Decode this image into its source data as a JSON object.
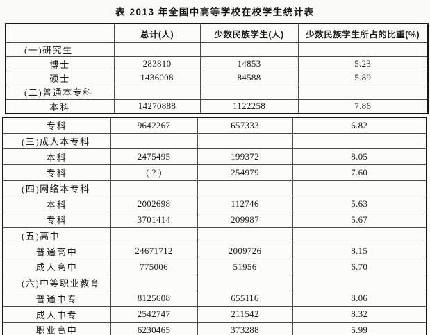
{
  "title": "表 2013 年全国中高等学校在校学生统计表",
  "table": {
    "headers": [
      "",
      "总计(人)",
      "少数民族学生(人)",
      "少数民族学生所占的比重(%)"
    ],
    "sections": [
      {
        "rows": [
          {
            "kind": "category",
            "label": "(一)研究生"
          },
          {
            "kind": "data",
            "label": "博士",
            "total": "283810",
            "minority": "14853",
            "pct": "5.23"
          },
          {
            "kind": "data",
            "label": "硕士",
            "total": "1436008",
            "minority": "84588",
            "pct": "5.89"
          },
          {
            "kind": "category",
            "label": "(二)普通本专科"
          },
          {
            "kind": "data",
            "label": "本科",
            "total": "14270888",
            "minority": "1122258",
            "pct": "7.86"
          }
        ]
      },
      {
        "rows": [
          {
            "kind": "data",
            "label": "专科",
            "total": "9642267",
            "minority": "657333",
            "pct": "6.82"
          },
          {
            "kind": "category",
            "label": "(三)成人本专科"
          },
          {
            "kind": "data",
            "label": "本科",
            "total": "2475495",
            "minority": "199372",
            "pct": "8.05"
          },
          {
            "kind": "data",
            "label": "专科",
            "total": "( ? )",
            "minority": "254979",
            "pct": "7.60"
          },
          {
            "kind": "category",
            "label": "(四)网络本专科"
          },
          {
            "kind": "data",
            "label": "本科",
            "total": "2002698",
            "minority": "112746",
            "pct": "5.63"
          },
          {
            "kind": "data",
            "label": "专科",
            "total": "3701414",
            "minority": "209987",
            "pct": "5.67"
          },
          {
            "kind": "category",
            "label": "(五)高中"
          },
          {
            "kind": "data",
            "label": "普通高中",
            "total": "24671712",
            "minority": "2009726",
            "pct": "8.15"
          },
          {
            "kind": "data",
            "label": "成人高中",
            "total": "775006",
            "minority": "51956",
            "pct": "6.70"
          },
          {
            "kind": "category",
            "label": "(六)中等职业教育"
          },
          {
            "kind": "data",
            "label": "普通中专",
            "total": "8125608",
            "minority": "655116",
            "pct": "8.06"
          },
          {
            "kind": "data",
            "label": "成人中专",
            "total": "2542747",
            "minority": "211542",
            "pct": "8.32"
          },
          {
            "kind": "data",
            "label": "职业高中",
            "total": "6230465",
            "minority": "373288",
            "pct": "5.99"
          }
        ]
      }
    ]
  }
}
